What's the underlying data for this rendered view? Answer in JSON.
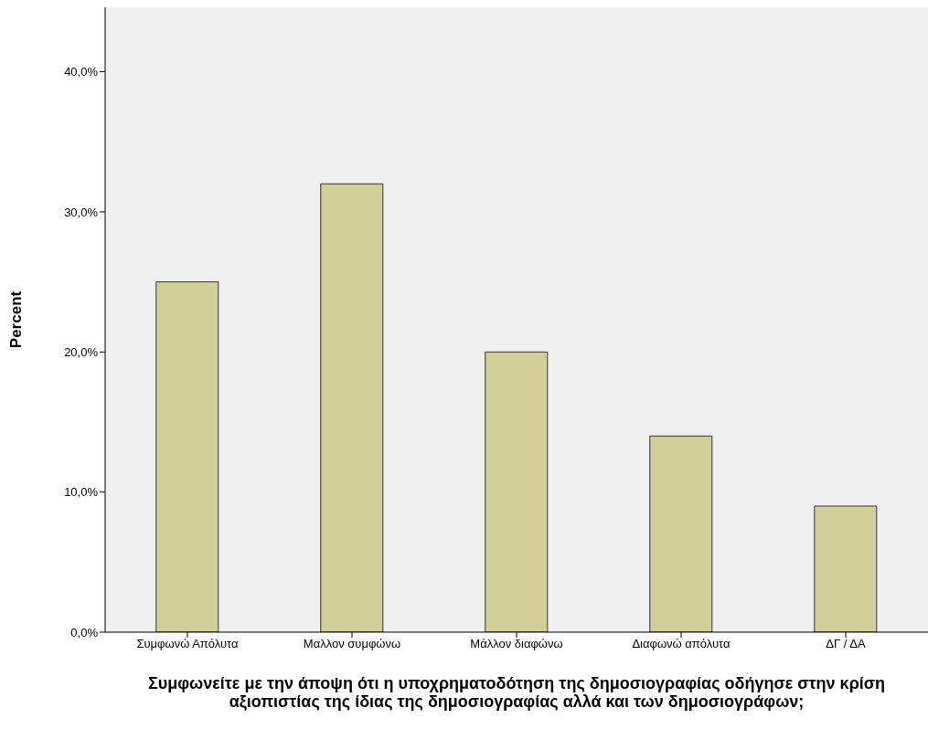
{
  "chart_data": {
    "type": "bar",
    "xlabel": "Συμφωνείτε με την άποψη ότι η υποχρηματοδότηση της δημοσιογραφίας οδήγησε στην κρίση αξιοπιστίας της ίδιας της δημοσιογραφίας αλλά και των δημοσιογράφων;",
    "ylabel": "Percent",
    "categories": [
      "Συμφωνώ Απόλυτα",
      "Μαλλον συμφώνω",
      "Μάλλον διαφώνω",
      "Διαφωνώ απόλυτα",
      "ΔΓ / ΔΑ"
    ],
    "values": [
      25,
      32,
      20,
      14,
      9
    ],
    "color": "#d3ce97",
    "ylim": [
      0,
      44.6
    ],
    "yticks": [
      {
        "value": 0,
        "label": "0,0%"
      },
      {
        "value": 10,
        "label": "10,0%"
      },
      {
        "value": 20,
        "label": "20,0%"
      },
      {
        "value": 30,
        "label": "30,0%"
      },
      {
        "value": 40,
        "label": "40,0%"
      }
    ],
    "grid": false
  }
}
